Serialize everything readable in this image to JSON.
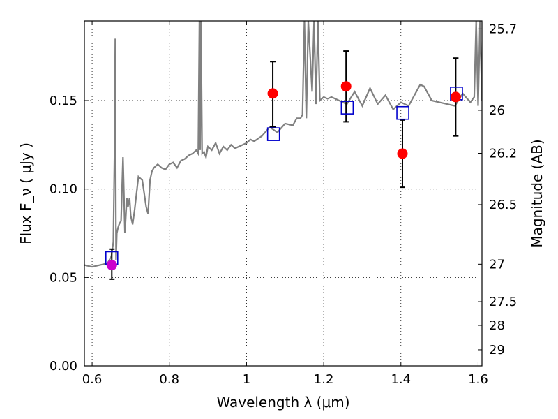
{
  "chart_data": {
    "type": "scatter",
    "title": "",
    "xlabel": "Wavelength  λ (μm)",
    "ylabel": "Flux  F_ν  ( μJy )",
    "ylabel_right": "Magnitude (AB)",
    "xlim": [
      0.58,
      1.61
    ],
    "ylim": [
      0.0,
      0.195
    ],
    "grid": true,
    "grid_style": "dotted",
    "legend": "none",
    "x_ticks": [
      0.6,
      0.8,
      1.0,
      1.2,
      1.4,
      1.6
    ],
    "x_tick_labels": [
      "0.6",
      "0.8",
      "1",
      "1.2",
      "1.4",
      "1.6"
    ],
    "y_ticks": [
      0.0,
      0.05,
      0.1,
      0.15
    ],
    "y_tick_labels": [
      "0.00",
      "0.05",
      "0.10",
      "0.15"
    ],
    "right_ticks": [
      {
        "label": "25.7",
        "flux": 0.1905
      },
      {
        "label": "26",
        "flux": 0.1445
      },
      {
        "label": "26.2",
        "flux": 0.1202
      },
      {
        "label": "26.5",
        "flux": 0.0912
      },
      {
        "label": "27",
        "flux": 0.0575
      },
      {
        "label": "27.5",
        "flux": 0.0363
      },
      {
        "label": "28",
        "flux": 0.0229
      },
      {
        "label": "29",
        "flux": 0.0091
      }
    ],
    "series": [
      {
        "type": "line",
        "color": "#808080",
        "x": [
          0.58,
          0.6,
          0.62,
          0.64,
          0.645,
          0.65,
          0.655,
          0.658,
          0.66,
          0.662,
          0.664,
          0.667,
          0.67,
          0.675,
          0.68,
          0.685,
          0.69,
          0.693,
          0.697,
          0.7,
          0.705,
          0.71,
          0.72,
          0.73,
          0.74,
          0.745,
          0.75,
          0.755,
          0.76,
          0.77,
          0.78,
          0.79,
          0.8,
          0.81,
          0.82,
          0.83,
          0.84,
          0.85,
          0.86,
          0.87,
          0.875,
          0.878,
          0.88,
          0.882,
          0.885,
          0.89,
          0.895,
          0.9,
          0.91,
          0.92,
          0.93,
          0.94,
          0.95,
          0.96,
          0.97,
          0.98,
          0.99,
          1.0,
          1.01,
          1.02,
          1.04,
          1.06,
          1.08,
          1.1,
          1.12,
          1.13,
          1.14,
          1.145,
          1.15,
          1.155,
          1.16,
          1.17,
          1.175,
          1.18,
          1.185,
          1.19,
          1.2,
          1.21,
          1.22,
          1.24,
          1.26,
          1.28,
          1.3,
          1.32,
          1.34,
          1.36,
          1.38,
          1.4,
          1.42,
          1.44,
          1.45,
          1.46,
          1.48,
          1.5,
          1.52,
          1.54,
          1.56,
          1.58,
          1.59,
          1.595,
          1.6,
          1.605,
          1.61
        ],
        "y": [
          0.057,
          0.056,
          0.057,
          0.058,
          0.06,
          0.062,
          0.07,
          0.12,
          0.185,
          0.06,
          0.075,
          0.078,
          0.08,
          0.082,
          0.118,
          0.075,
          0.095,
          0.09,
          0.095,
          0.085,
          0.08,
          0.088,
          0.107,
          0.105,
          0.09,
          0.086,
          0.105,
          0.11,
          0.112,
          0.114,
          0.112,
          0.111,
          0.114,
          0.115,
          0.112,
          0.116,
          0.117,
          0.119,
          0.12,
          0.122,
          0.12,
          0.195,
          0.122,
          0.195,
          0.12,
          0.121,
          0.118,
          0.124,
          0.122,
          0.126,
          0.12,
          0.124,
          0.122,
          0.125,
          0.123,
          0.124,
          0.125,
          0.126,
          0.128,
          0.127,
          0.13,
          0.135,
          0.132,
          0.137,
          0.136,
          0.14,
          0.14,
          0.142,
          0.195,
          0.14,
          0.195,
          0.155,
          0.195,
          0.148,
          0.195,
          0.15,
          0.152,
          0.151,
          0.152,
          0.15,
          0.148,
          0.155,
          0.147,
          0.157,
          0.148,
          0.153,
          0.145,
          0.149,
          0.147,
          0.155,
          0.159,
          0.158,
          0.15,
          0.149,
          0.148,
          0.147,
          0.154,
          0.149,
          0.152,
          0.195,
          0.147,
          0.195,
          0.15
        ]
      },
      {
        "type": "markers",
        "marker": "open-square",
        "color": "#0000cc",
        "x": [
          0.651,
          1.07,
          1.261,
          1.405,
          1.544
        ],
        "y": [
          0.061,
          0.131,
          0.146,
          0.143,
          0.154
        ]
      },
      {
        "type": "errorbar",
        "marker": "filled-circle",
        "x": [
          0.651,
          1.068,
          1.258,
          1.404,
          1.542
        ],
        "y": [
          0.057,
          0.154,
          0.158,
          0.12,
          0.152
        ],
        "yerr_low": [
          0.049,
          0.135,
          0.138,
          0.101,
          0.13
        ],
        "yerr_high": [
          0.066,
          0.172,
          0.178,
          0.139,
          0.174
        ],
        "colors": [
          "#cc00cc",
          "#ff0000",
          "#ff0000",
          "#ff0000",
          "#ff0000"
        ]
      }
    ]
  }
}
